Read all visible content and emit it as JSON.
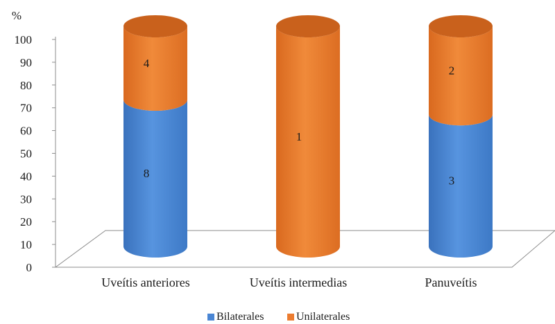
{
  "chart_data": {
    "type": "bar",
    "stacked": true,
    "percent_stacked": true,
    "three_d": "cylinder",
    "y_unit": "%",
    "ylim": [
      0,
      100
    ],
    "y_ticks": [
      "0",
      "10",
      "20",
      "30",
      "40",
      "50",
      "60",
      "70",
      "80",
      "90",
      "100"
    ],
    "categories": [
      "Uveítis anteriores",
      "Uveítis intermedias",
      "Panuveítis"
    ],
    "series": [
      {
        "name": "Bilaterales",
        "color": "#4a86d4",
        "values": [
          8,
          0,
          3
        ]
      },
      {
        "name": "Unilaterales",
        "color": "#ec7c30",
        "values": [
          4,
          1,
          2
        ]
      }
    ],
    "legend": "bottom",
    "grid": false
  }
}
